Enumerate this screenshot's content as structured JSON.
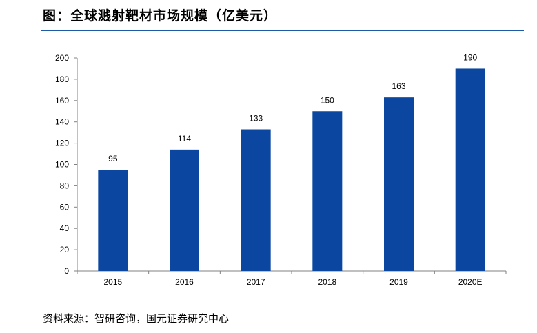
{
  "title": "图：全球溅射靶材市场规模（亿美元）",
  "source": "资料来源：智研咨询，国元证券研究中心",
  "colors": {
    "bar": "#0b47a1",
    "rule": "#1f5aa6",
    "axis": "#808080"
  },
  "chart_data": {
    "type": "bar",
    "categories": [
      "2015",
      "2016",
      "2017",
      "2018",
      "2019",
      "2020E"
    ],
    "values": [
      95,
      114,
      133,
      150,
      163,
      190
    ],
    "data_labels": [
      "95",
      "114",
      "133",
      "150",
      "163",
      "190"
    ],
    "title": "",
    "xlabel": "",
    "ylabel": "",
    "ylim": [
      0,
      200
    ],
    "yticks": [
      "0",
      "20",
      "40",
      "60",
      "80",
      "100",
      "120",
      "140",
      "160",
      "180",
      "200"
    ],
    "grid": false,
    "legend": "none"
  }
}
